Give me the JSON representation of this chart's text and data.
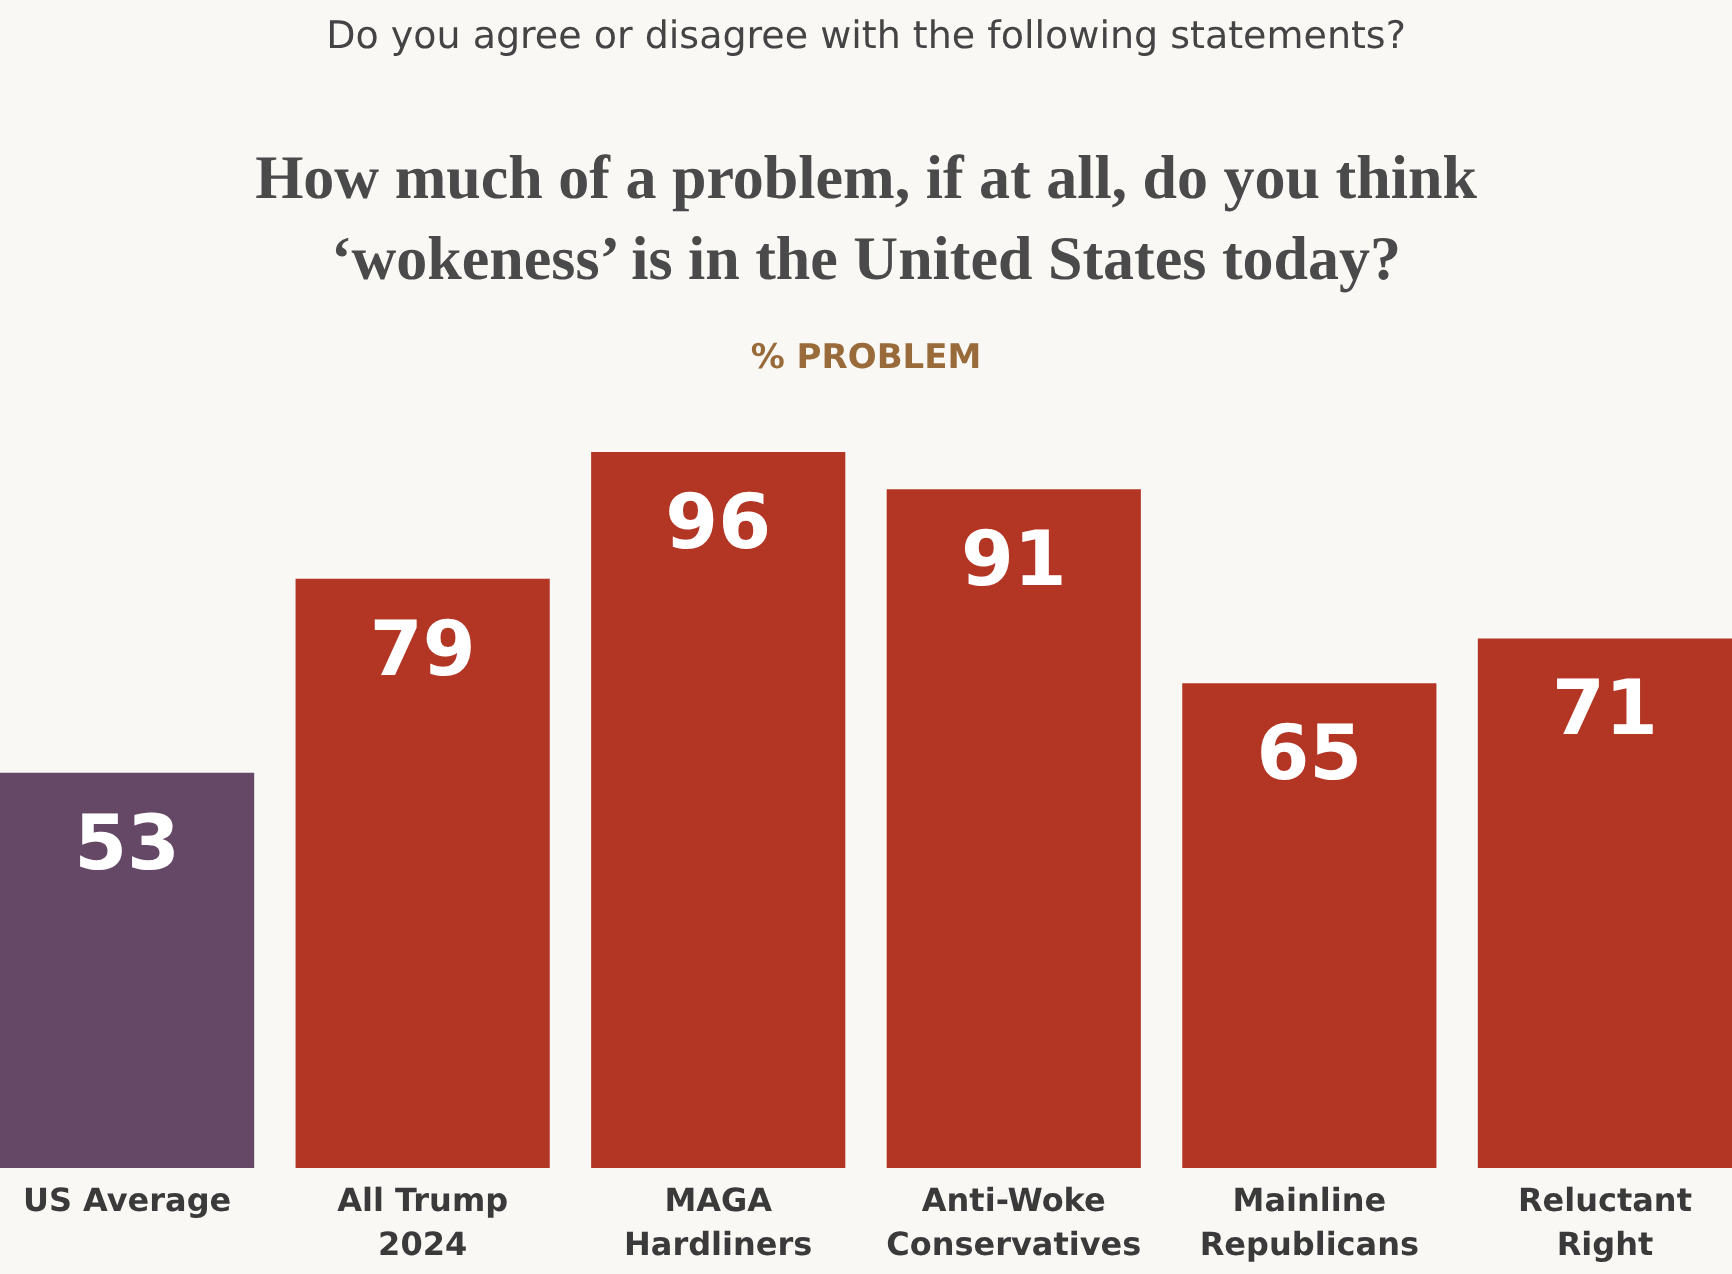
{
  "chart_data": {
    "type": "bar",
    "subtitle": "Do you agree or disagree with the following statements?",
    "title": "How much of a problem, if at all, do you think ‘wokeness’ is in the United States today?",
    "ylabel": "% PROBLEM",
    "categories": [
      "US Average",
      "All Trump 2024",
      "MAGA Hardliners",
      "Anti-Woke Conservatives",
      "Mainline Republicans",
      "Reluctant Right"
    ],
    "values": [
      53,
      79,
      96,
      91,
      65,
      71
    ],
    "colors": [
      "#654766",
      "#b33625",
      "#b33625",
      "#b33625",
      "#b33625",
      "#b33625"
    ],
    "data_labels": true,
    "grid": false
  }
}
